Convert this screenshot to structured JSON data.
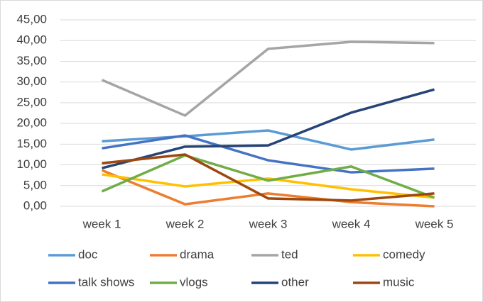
{
  "chart_data": {
    "type": "line",
    "categories": [
      "week 1",
      "week 2",
      "week 3",
      "week 4",
      "week 5"
    ],
    "series": [
      {
        "name": "doc",
        "color": "#5b9bd5",
        "values": [
          15.7,
          16.9,
          18.3,
          13.7,
          16.1
        ]
      },
      {
        "name": "drama",
        "color": "#ed7d31",
        "values": [
          8.7,
          0.5,
          3.1,
          1.0,
          0
        ]
      },
      {
        "name": "ted",
        "color": "#a5a5a5",
        "values": [
          30.5,
          21.9,
          38.0,
          39.7,
          39.4
        ]
      },
      {
        "name": "comedy",
        "color": "#ffc000",
        "values": [
          7.7,
          4.8,
          6.7,
          4.1,
          2.1
        ]
      },
      {
        "name": "talk shows",
        "color": "#4472c4",
        "values": [
          14.0,
          17.1,
          11.1,
          8.2,
          9.1
        ]
      },
      {
        "name": "vlogs",
        "color": "#70ad47",
        "values": [
          3.6,
          12.3,
          6.2,
          9.6,
          2.1
        ]
      },
      {
        "name": "other",
        "color": "#264478",
        "values": [
          9.2,
          14.4,
          14.7,
          22.6,
          28.2
        ]
      },
      {
        "name": "music",
        "color": "#9e480e",
        "values": [
          10.4,
          12.5,
          1.9,
          1.4,
          3.1
        ]
      }
    ],
    "ylim": [
      0,
      45
    ],
    "yticks": [
      {
        "value": 0,
        "label": "0,00"
      },
      {
        "value": 5,
        "label": "5,00"
      },
      {
        "value": 10,
        "label": "10,00"
      },
      {
        "value": 15,
        "label": "15,00"
      },
      {
        "value": 20,
        "label": "20,00"
      },
      {
        "value": 25,
        "label": "25,00"
      },
      {
        "value": 30,
        "label": "30,00"
      },
      {
        "value": 35,
        "label": "35,00"
      },
      {
        "value": 40,
        "label": "40,00"
      },
      {
        "value": 45,
        "label": "45,00"
      }
    ],
    "grid": true
  }
}
